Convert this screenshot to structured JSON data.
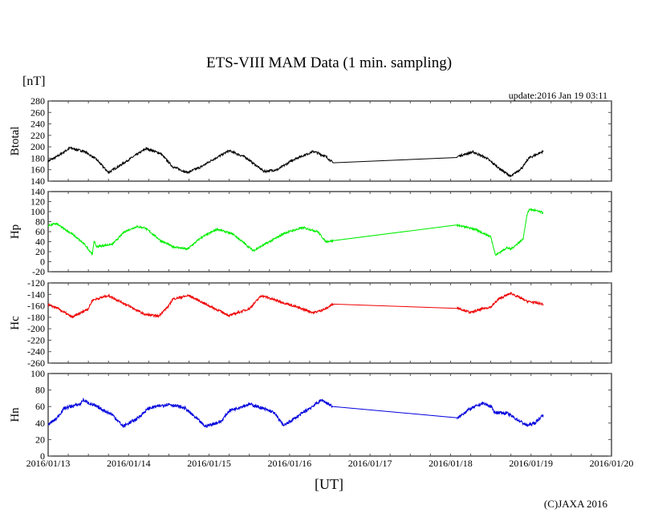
{
  "chart_data": {
    "type": "line",
    "title": "ETS-VIII MAM Data (1 min. sampling)",
    "unit_label": "[nT]",
    "xlabel": "[UT]",
    "update": "update:2016 Jan 19 03:11",
    "copyright": "(C)JAXA 2016",
    "x_unit": "days since 2016/01/13 00:00 UT",
    "xlim": [
      0,
      7
    ],
    "x_ticks": [
      "2016/01/13",
      "2016/01/14",
      "2016/01/15",
      "2016/01/16",
      "2016/01/17",
      "2016/01/18",
      "2016/01/19",
      "2016/01/20"
    ],
    "gap": [
      3.54,
      5.08
    ],
    "panels": [
      {
        "name": "Btotal",
        "color": "#000000",
        "ylim": [
          140,
          280
        ],
        "yticks": [
          280,
          260,
          240,
          220,
          200,
          180,
          160,
          140
        ],
        "x": [
          0,
          0.1,
          0.27,
          0.45,
          0.6,
          0.75,
          0.9,
          1.05,
          1.22,
          1.4,
          1.55,
          1.73,
          1.9,
          2.05,
          2.25,
          2.45,
          2.68,
          2.85,
          3.05,
          3.3,
          3.45,
          3.54,
          5.08,
          5.28,
          5.45,
          5.6,
          5.75,
          5.9,
          5.97,
          6.15
        ],
        "y": [
          175,
          182,
          198,
          192,
          178,
          155,
          168,
          182,
          197,
          188,
          165,
          155,
          165,
          178,
          193,
          182,
          157,
          160,
          178,
          192,
          183,
          172,
          183,
          191,
          180,
          163,
          148,
          165,
          180,
          192
        ]
      },
      {
        "name": "Hp",
        "color": "#00ee00",
        "ylim": [
          -20,
          140
        ],
        "yticks": [
          140,
          120,
          100,
          80,
          60,
          40,
          20,
          0,
          -20
        ],
        "x": [
          0,
          0.1,
          0.3,
          0.45,
          0.55,
          0.57,
          0.6,
          0.8,
          0.95,
          1.1,
          1.2,
          1.4,
          1.55,
          1.73,
          1.9,
          2.1,
          2.3,
          2.55,
          2.75,
          2.95,
          3.17,
          3.35,
          3.45,
          3.54,
          5.08,
          5.3,
          5.5,
          5.56,
          5.7,
          5.75,
          5.9,
          5.95,
          5.98,
          6.15
        ],
        "y": [
          72,
          76,
          55,
          35,
          15,
          42,
          30,
          35,
          60,
          70,
          68,
          42,
          30,
          25,
          48,
          65,
          55,
          22,
          40,
          58,
          68,
          60,
          40,
          42,
          73,
          65,
          50,
          13,
          28,
          25,
          45,
          93,
          105,
          98
        ]
      },
      {
        "name": "Hc",
        "color": "#ee0000",
        "ylim": [
          -260,
          -120
        ],
        "yticks": [
          -120,
          -140,
          -160,
          -180,
          -200,
          -220,
          -240,
          -260
        ],
        "x": [
          0,
          0.1,
          0.3,
          0.5,
          0.55,
          0.75,
          1.0,
          1.2,
          1.37,
          1.5,
          1.55,
          1.75,
          2.0,
          2.25,
          2.5,
          2.65,
          3.0,
          3.3,
          3.45,
          3.54,
          5.08,
          5.25,
          5.4,
          5.5,
          5.6,
          5.75,
          5.95,
          6.15
        ],
        "y": [
          -158,
          -163,
          -180,
          -165,
          -150,
          -142,
          -160,
          -175,
          -178,
          -160,
          -148,
          -142,
          -160,
          -177,
          -165,
          -142,
          -158,
          -172,
          -165,
          -157,
          -163,
          -172,
          -165,
          -162,
          -148,
          -138,
          -152,
          -157
        ]
      },
      {
        "name": "Hn",
        "color": "#0000dd",
        "ylim": [
          0,
          100
        ],
        "yticks": [
          100,
          80,
          60,
          40,
          20,
          0
        ],
        "x": [
          0,
          0.1,
          0.2,
          0.4,
          0.43,
          0.6,
          0.8,
          0.93,
          1.1,
          1.25,
          1.45,
          1.5,
          1.7,
          1.85,
          1.95,
          2.15,
          2.25,
          2.5,
          2.6,
          2.8,
          2.93,
          3.1,
          3.4,
          3.54,
          5.08,
          5.2,
          5.4,
          5.5,
          5.55,
          5.7,
          5.9,
          5.95,
          6.05,
          6.15
        ],
        "y": [
          38,
          45,
          58,
          63,
          68,
          60,
          50,
          36,
          45,
          58,
          62,
          63,
          58,
          45,
          36,
          42,
          55,
          63,
          60,
          53,
          37,
          48,
          68,
          60,
          45,
          55,
          64,
          60,
          53,
          52,
          40,
          37,
          40,
          50
        ]
      }
    ]
  }
}
